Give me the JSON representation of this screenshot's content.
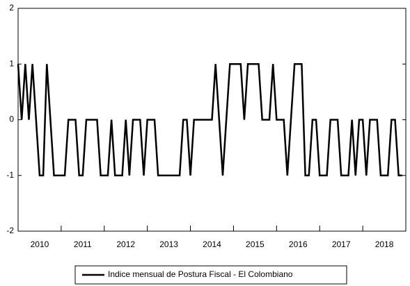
{
  "chart_data": {
    "type": "line",
    "x": [
      2010,
      2010.083,
      2010.167,
      2010.25,
      2010.333,
      2010.417,
      2010.5,
      2010.583,
      2010.667,
      2010.75,
      2010.833,
      2010.917,
      2011,
      2011.083,
      2011.167,
      2011.25,
      2011.333,
      2011.417,
      2011.5,
      2011.583,
      2011.667,
      2011.75,
      2011.833,
      2011.917,
      2012,
      2012.083,
      2012.167,
      2012.25,
      2012.333,
      2012.417,
      2012.5,
      2012.583,
      2012.667,
      2012.75,
      2012.833,
      2012.917,
      2013,
      2013.083,
      2013.167,
      2013.25,
      2013.333,
      2013.417,
      2013.5,
      2013.583,
      2013.667,
      2013.75,
      2013.833,
      2013.917,
      2014,
      2014.083,
      2014.167,
      2014.25,
      2014.333,
      2014.417,
      2014.5,
      2014.583,
      2014.667,
      2014.75,
      2014.833,
      2014.917,
      2015,
      2015.083,
      2015.167,
      2015.25,
      2015.333,
      2015.417,
      2015.5,
      2015.583,
      2015.667,
      2015.75,
      2015.833,
      2015.917,
      2016,
      2016.083,
      2016.167,
      2016.25,
      2016.333,
      2016.417,
      2016.5,
      2016.583,
      2016.667,
      2016.75,
      2016.833,
      2016.917,
      2017,
      2017.083,
      2017.167,
      2017.25,
      2017.333,
      2017.417,
      2017.5,
      2017.583,
      2017.667,
      2017.75,
      2017.833,
      2017.917,
      2018,
      2018.083,
      2018.167,
      2018.25,
      2018.333,
      2018.417,
      2018.5,
      2018.583,
      2018.667,
      2018.75,
      2018.833,
      2018.917
    ],
    "series": [
      {
        "name": "Indice mensual de Postura Fiscal - El Colombiano",
        "color": "#000000",
        "values": [
          1,
          0,
          1,
          0,
          1,
          0,
          -1,
          -1,
          1,
          0,
          -1,
          -1,
          -1,
          -1,
          0,
          0,
          0,
          -1,
          -1,
          0,
          0,
          0,
          0,
          -1,
          -1,
          -1,
          0,
          -1,
          -1,
          -1,
          0,
          -1,
          0,
          0,
          0,
          -1,
          0,
          0,
          0,
          -1,
          -1,
          -1,
          -1,
          -1,
          -1,
          -1,
          0,
          0,
          -1,
          0,
          0,
          0,
          0,
          0,
          0,
          1,
          0,
          -1,
          0,
          1,
          1,
          1,
          1,
          0,
          1,
          1,
          1,
          1,
          0,
          0,
          0,
          1,
          0,
          0,
          0,
          -1,
          0,
          1,
          1,
          1,
          -1,
          -1,
          0,
          0,
          -1,
          -1,
          -1,
          0,
          0,
          0,
          -1,
          -1,
          -1,
          0,
          -1,
          0,
          0,
          -1,
          0,
          0,
          0,
          -1,
          -1,
          -1,
          0,
          0,
          -1,
          -1
        ]
      }
    ],
    "xlim": [
      2010,
      2019
    ],
    "xticks": [
      2010,
      2011,
      2012,
      2013,
      2014,
      2015,
      2016,
      2017,
      2018
    ],
    "ylim": [
      -2,
      2
    ],
    "yticks": [
      -2,
      -1,
      0,
      1,
      2
    ],
    "grid": false,
    "legend": "bottom"
  }
}
